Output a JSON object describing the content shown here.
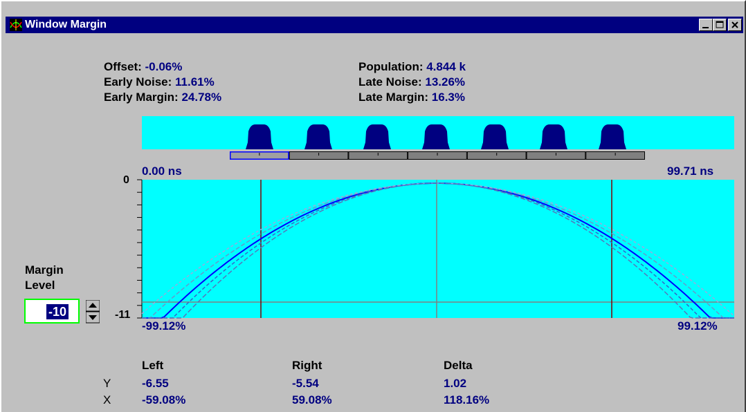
{
  "window": {
    "title": "Window Margin",
    "title_icon": "eye-diagram-app-icon",
    "controls": [
      "minimize-icon",
      "maximize-icon",
      "close-icon"
    ]
  },
  "stats": {
    "offset_label": "Offset:",
    "offset_value": "-0.06%",
    "early_noise_label": "Early Noise:",
    "early_noise_value": "11.61%",
    "early_margin_label": "Early Margin:",
    "early_margin_value": "24.78%",
    "population_label": "Population:",
    "population_value": "4.844 k",
    "late_noise_label": "Late Noise:",
    "late_noise_value": "13.26%",
    "late_margin_label": "Late Margin:",
    "late_margin_value": "16.3%"
  },
  "unit_strip": {
    "pulse_count": 7,
    "segment_count": 7,
    "selected_segment": 0
  },
  "plot": {
    "time_start": "0.00 ns",
    "time_end": "99.71 ns",
    "y_top_label": "0",
    "y_bottom_label": "-11",
    "x_left_label": "-99.12%",
    "x_right_label": "99.12%",
    "background_color": "#00ffff",
    "trace_color": "#0000ff",
    "marker_color": "#800000"
  },
  "margin_level": {
    "label_line1": "Margin",
    "label_line2": "Level",
    "value": "-10"
  },
  "results": {
    "headers": [
      "Left",
      "Right",
      "Delta"
    ],
    "rows": [
      {
        "label": "Y",
        "values": [
          "-6.55",
          "-5.54",
          "1.02"
        ]
      },
      {
        "label": "X",
        "values": [
          "-59.08%",
          "59.08%",
          "118.16%"
        ]
      }
    ]
  }
}
